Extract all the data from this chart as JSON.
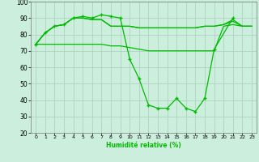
{
  "xlabel": "Humidité relative (%)",
  "background_color": "#cceedd",
  "grid_color": "#aaccbb",
  "line_color": "#00bb00",
  "xlim": [
    -0.5,
    23.5
  ],
  "ylim": [
    20,
    100
  ],
  "yticks": [
    20,
    30,
    40,
    50,
    60,
    70,
    80,
    90,
    100
  ],
  "xticks": [
    0,
    1,
    2,
    3,
    4,
    5,
    6,
    7,
    8,
    9,
    10,
    11,
    12,
    13,
    14,
    15,
    16,
    17,
    18,
    19,
    20,
    21,
    22,
    23
  ],
  "line1_x": [
    0,
    1,
    2,
    3,
    4,
    5,
    6,
    7,
    8,
    9,
    10,
    11,
    12,
    13,
    14,
    15,
    16,
    17,
    18,
    19,
    21
  ],
  "line1_y": [
    74,
    81,
    85,
    86,
    90,
    91,
    90,
    92,
    91,
    90,
    65,
    53,
    37,
    35,
    35,
    41,
    35,
    33,
    41,
    71,
    90
  ],
  "line2_x": [
    0,
    1,
    2,
    3,
    4,
    5,
    6,
    7,
    8,
    9,
    10,
    11,
    12,
    13,
    14,
    15,
    16,
    17,
    18,
    19,
    20,
    21,
    22,
    23
  ],
  "line2_y": [
    74,
    81,
    85,
    86,
    90,
    90,
    89,
    89,
    85,
    85,
    85,
    84,
    84,
    84,
    84,
    84,
    84,
    84,
    85,
    85,
    86,
    89,
    85,
    85
  ],
  "line3_x": [
    0,
    1,
    2,
    3,
    4,
    5,
    6,
    7,
    8,
    9,
    10,
    11,
    12,
    13,
    14,
    15,
    16,
    17,
    18,
    19,
    20,
    21,
    22,
    23
  ],
  "line3_y": [
    74,
    81,
    85,
    86,
    90,
    90,
    89,
    89,
    85,
    85,
    85,
    84,
    84,
    84,
    84,
    84,
    84,
    84,
    85,
    85,
    86,
    88,
    85,
    85
  ],
  "line4_x": [
    0,
    1,
    2,
    3,
    4,
    5,
    6,
    7,
    8,
    9,
    10,
    11,
    12,
    13,
    14,
    15,
    16,
    17,
    18,
    19,
    20,
    21,
    22,
    23
  ],
  "line4_y": [
    74,
    74,
    74,
    74,
    74,
    74,
    74,
    74,
    73,
    73,
    72,
    71,
    70,
    70,
    70,
    70,
    70,
    70,
    70,
    70,
    85,
    86,
    85,
    85
  ]
}
